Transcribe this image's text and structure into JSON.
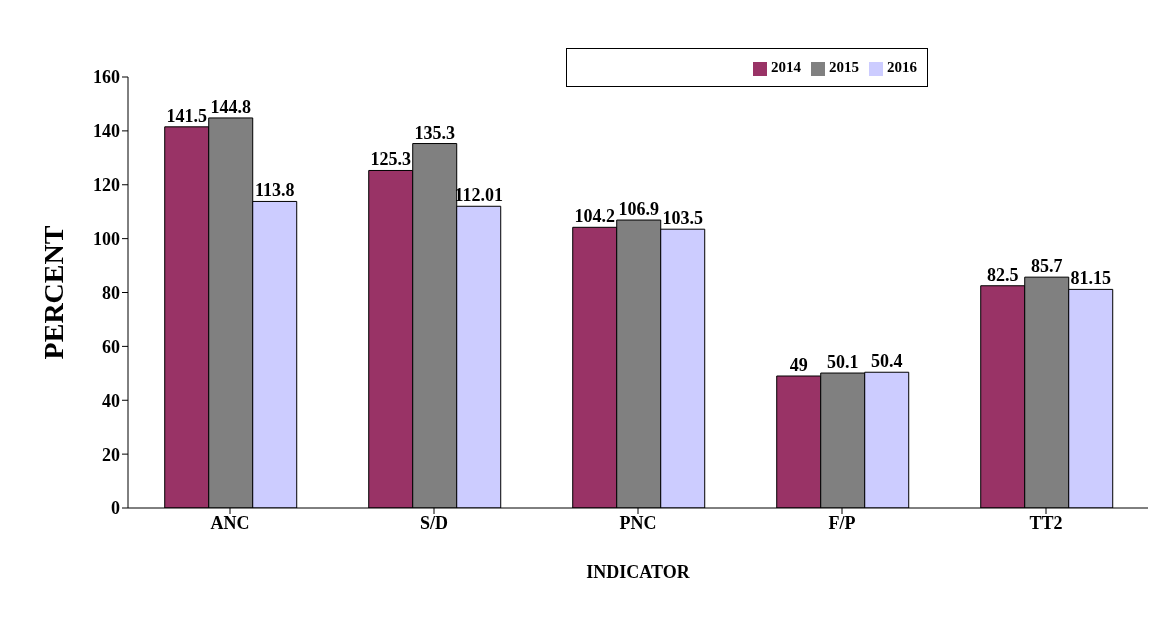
{
  "chart_data": {
    "type": "bar",
    "xlabel": "INDICATOR",
    "ylabel": "PERCENT",
    "categories": [
      "ANC",
      "S/D",
      "PNC",
      "F/P",
      "TT2"
    ],
    "series": [
      {
        "name": "2014",
        "color": "#993366",
        "values": [
          141.5,
          125.3,
          104.2,
          49,
          82.5
        ]
      },
      {
        "name": "2015",
        "color": "#808080",
        "values": [
          144.8,
          135.3,
          106.9,
          50.1,
          85.7
        ]
      },
      {
        "name": "2016",
        "color": "#ccccff",
        "values": [
          113.8,
          112.01,
          103.5,
          50.4,
          81.15
        ]
      }
    ],
    "ylim": [
      0,
      160
    ],
    "yticks": [
      0,
      20,
      40,
      60,
      80,
      100,
      120,
      140,
      160
    ],
    "grid": false,
    "legend": "top right",
    "data_labels": true
  }
}
